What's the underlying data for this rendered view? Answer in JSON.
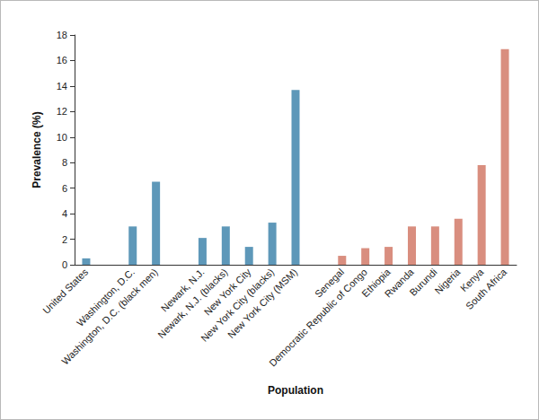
{
  "chart_data": {
    "type": "bar",
    "x_label": "Population",
    "y_label": "Prevalence (%)",
    "categories": [
      "United States",
      null,
      "Washington, D.C.",
      "Washington, D.C. (black men)",
      null,
      "Newark, N.J.",
      "Newark, N.J. (blacks)",
      "New York City",
      "New York City (blacks)",
      "New York City (MSM)",
      null,
      "Senegal",
      "Democratic Republic of Congo",
      "Ethiopia",
      "Rwanda",
      "Burundi",
      "Nigeria",
      "Kenya",
      "South Africa"
    ],
    "values": [
      0.5,
      null,
      3.0,
      6.5,
      null,
      2.1,
      3.0,
      1.4,
      3.3,
      13.7,
      null,
      0.7,
      1.3,
      1.4,
      3.0,
      3.0,
      3.6,
      7.8,
      16.9
    ],
    "colors": [
      "#5e98b9",
      null,
      "#5e98b9",
      "#5e98b9",
      null,
      "#5e98b9",
      "#5e98b9",
      "#5e98b9",
      "#5e98b9",
      "#5e98b9",
      null,
      "#d98e7f",
      "#d98e7f",
      "#d98e7f",
      "#d98e7f",
      "#d98e7f",
      "#d98e7f",
      "#d98e7f",
      "#d98e7f"
    ],
    "ylim": [
      0,
      18
    ],
    "yticks": [
      0,
      2,
      4,
      6,
      8,
      10,
      12,
      14,
      16,
      18
    ],
    "grid": false
  }
}
